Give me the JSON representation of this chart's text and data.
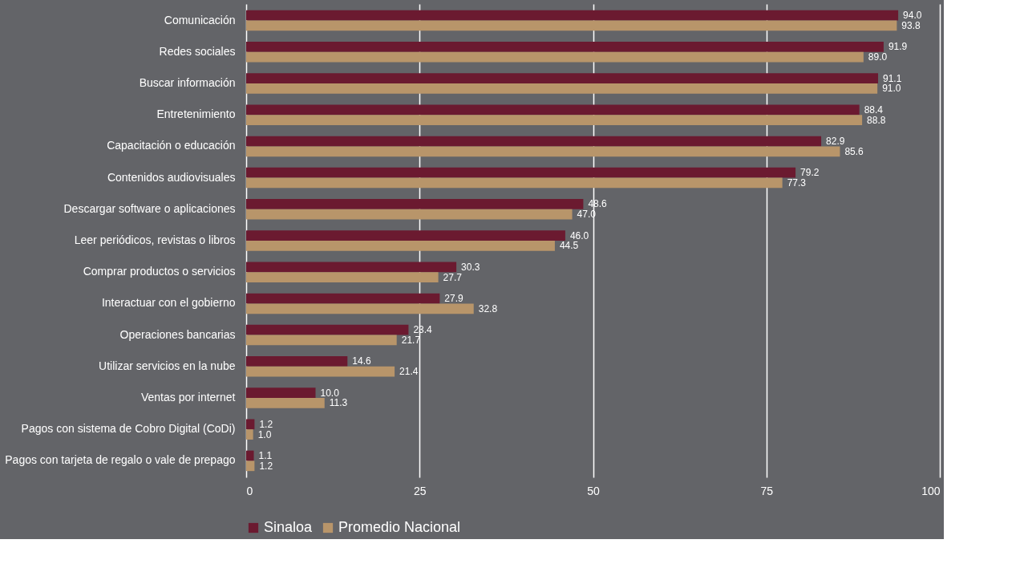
{
  "chart_data": {
    "type": "bar",
    "orientation": "horizontal",
    "categories": [
      "Comunicación",
      "Redes sociales",
      "Buscar información",
      "Entretenimiento",
      "Capacitación o educación",
      "Contenidos audiovisuales",
      "Descargar software o aplicaciones",
      "Leer periódicos, revistas o libros",
      "Comprar productos o servicios",
      "Interactuar con el gobierno",
      "Operaciones bancarias",
      "Utilizar servicios en la nube",
      "Ventas por internet",
      "Pagos con sistema de Cobro Digital (CoDi)",
      "Pagos con tarjeta de regalo o vale de prepago"
    ],
    "series": [
      {
        "name": "Sinaloa",
        "color": "#6b1a30",
        "values": [
          94.0,
          91.9,
          91.1,
          88.4,
          82.9,
          79.2,
          48.6,
          46.0,
          30.3,
          27.9,
          23.4,
          14.6,
          10.0,
          1.2,
          1.1
        ],
        "value_labels": [
          "94.0",
          "91.9",
          "91.1",
          "88.4",
          "82.9",
          "79.2",
          "48.6",
          "46.0",
          "30.3",
          "27.9",
          "23.4",
          "14.6",
          "10.0",
          "1.2",
          "1.1"
        ]
      },
      {
        "name": "Promedio Nacional",
        "color": "#b8956a",
        "values": [
          93.8,
          89.0,
          91.0,
          88.8,
          85.6,
          77.3,
          47.0,
          44.5,
          27.7,
          32.8,
          21.7,
          21.4,
          11.3,
          1.0,
          1.2
        ],
        "value_labels": [
          "93.8",
          "89.0",
          "91.0",
          "88.8",
          "85.6",
          "77.3",
          "47.0",
          "44.5",
          "27.7",
          "32.8",
          "21.7",
          "21.4",
          "11.3",
          "1.0",
          "1.2"
        ]
      }
    ],
    "xlim": [
      0,
      100
    ],
    "xticks": [
      0,
      25,
      50,
      75,
      100
    ],
    "grid": "x",
    "legend": "bottom"
  }
}
